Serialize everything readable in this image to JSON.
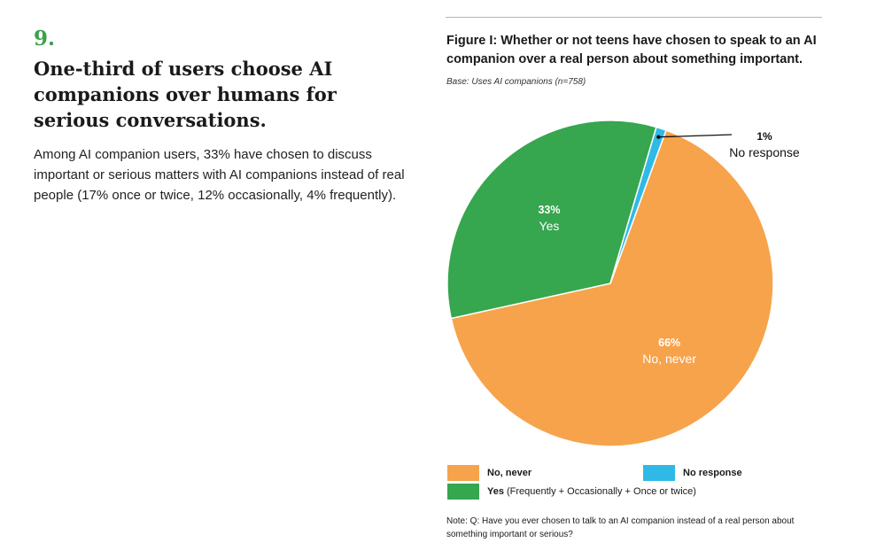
{
  "section": {
    "number": "9.",
    "headline": "One-third of users choose AI companions over humans for serious conversations.",
    "body": "Among AI companion users, 33% have chosen to discuss important or serious matters with AI companions instead of real people (17% once or twice, 12% occasionally, 4% frequently)."
  },
  "figure": {
    "title": "Figure I: Whether or not teens have chosen to speak to an AI companion over a real person about something important.",
    "base": "Base: Uses AI companions (n=758)",
    "note": "Note: Q: Have you ever chosen to talk to an AI companion instead of a real person about something important or serious?"
  },
  "legend": [
    {
      "label": "No, never",
      "detail": "",
      "color": "#f7a34b"
    },
    {
      "label": "No response",
      "detail": "",
      "color": "#2fb9e6"
    },
    {
      "label": "Yes",
      "detail": "(Frequently + Occasionally + Once or twice)",
      "color": "#36a64f"
    }
  ],
  "chart_data": {
    "type": "pie",
    "title": "Figure I: Whether or not teens have chosen to speak to an AI companion over a real person about something important.",
    "slices": [
      {
        "name": "No, never",
        "value": 66,
        "label_value": "66%",
        "label_name": "No, never",
        "color": "#f7a34b"
      },
      {
        "name": "Yes",
        "value": 33,
        "label_value": "33%",
        "label_name": "Yes",
        "color": "#36a64f"
      },
      {
        "name": "No response",
        "value": 1,
        "label_value": "1%",
        "label_name": "No response",
        "color": "#2fb9e6"
      }
    ]
  }
}
